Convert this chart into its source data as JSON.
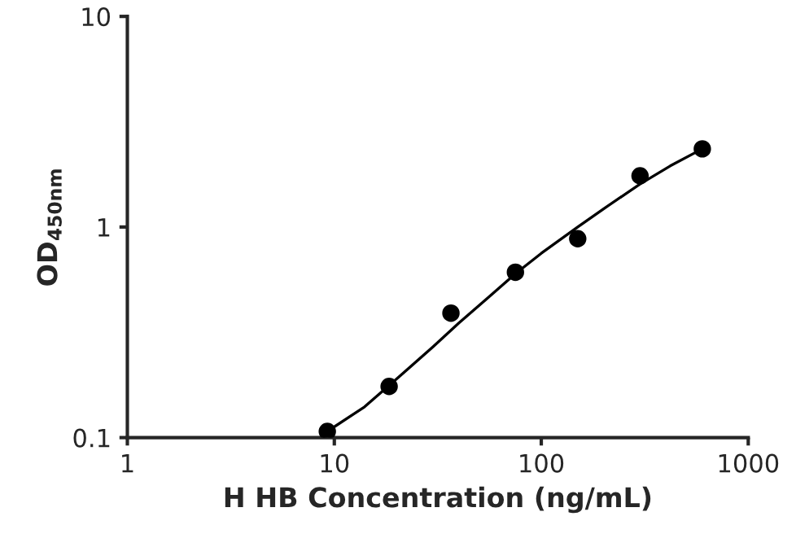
{
  "chart_data": {
    "type": "scatter",
    "xlabel": "H HB Concentration (ng/mL)",
    "ylabel": "OD$_{450nm}$",
    "log": "xy",
    "xlim": [
      1,
      1000
    ],
    "ylim": [
      0.1,
      10
    ],
    "xticks": [
      1,
      10,
      100,
      1000
    ],
    "yticks": [
      0.1,
      1,
      10
    ],
    "grid": false,
    "legend": false,
    "series": [
      {
        "type": "scatter",
        "color": "#000000",
        "marker": "circle",
        "x": [
          9.25,
          18.4,
          36.6,
          75,
          150,
          300,
          600
        ],
        "values": [
          0.107,
          0.175,
          0.39,
          0.61,
          0.88,
          1.75,
          2.35
        ]
      },
      {
        "type": "line",
        "color": "#000000",
        "line_style": "solid",
        "x": [
          9.25,
          14,
          20,
          30,
          40,
          55,
          75,
          100,
          150,
          200,
          300,
          420,
          600
        ],
        "values": [
          0.107,
          0.14,
          0.19,
          0.27,
          0.35,
          0.46,
          0.6,
          0.75,
          1.0,
          1.22,
          1.6,
          1.95,
          2.35
        ]
      }
    ]
  }
}
